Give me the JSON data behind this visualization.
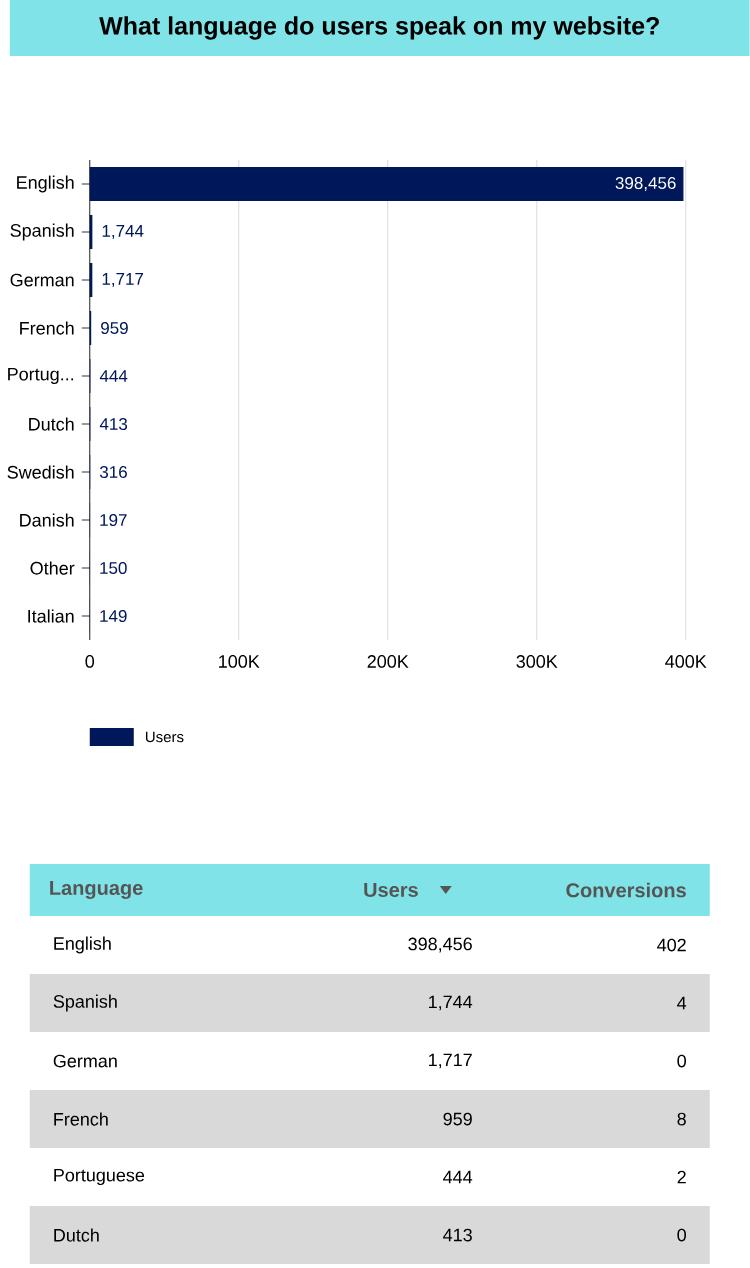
{
  "chart_data": [
    {
      "type": "bar",
      "orientation": "horizontal",
      "title": "What language do users speak on my website?",
      "categories": [
        "English",
        "Spanish",
        "German",
        "French",
        "Portug...",
        "Dutch",
        "Swedish",
        "Danish",
        "Other",
        "Italian"
      ],
      "series": [
        {
          "name": "Users",
          "color": "#00185a",
          "values": [
            398456,
            1744,
            1717,
            959,
            444,
            413,
            316,
            197,
            150,
            149
          ],
          "value_labels": [
            "398,456",
            "1,744",
            "1,717",
            "959",
            "444",
            "413",
            "316",
            "197",
            "150",
            "149"
          ]
        }
      ],
      "xlim": [
        0,
        400000
      ],
      "xticks": [
        0,
        {
          "value": 100000,
          "label": "100K"
        },
        {
          "value": 200000,
          "label": "200K"
        },
        {
          "value": 300000,
          "label": "300K"
        },
        {
          "value": 400000,
          "label": "400K"
        }
      ],
      "grid": "x",
      "legend": "bottom"
    },
    {
      "type": "other",
      "ylabel": "Language",
      "categories": [
        "English",
        "Spanish",
        "German",
        "French",
        "Portuguese",
        "Dutch"
      ],
      "series": [
        {
          "name": "Users",
          "values": [
            398456,
            1744,
            1717,
            959,
            444,
            413
          ],
          "value_labels": [
            "398,456",
            "1,744",
            "1,717",
            "959",
            "444",
            "413"
          ]
        },
        {
          "name": "Conversions",
          "values": [
            402,
            4,
            0,
            8,
            2,
            0
          ],
          "value_labels": [
            "402",
            "4",
            "0",
            "8",
            "2",
            "0"
          ]
        }
      ]
    }
  ]
}
